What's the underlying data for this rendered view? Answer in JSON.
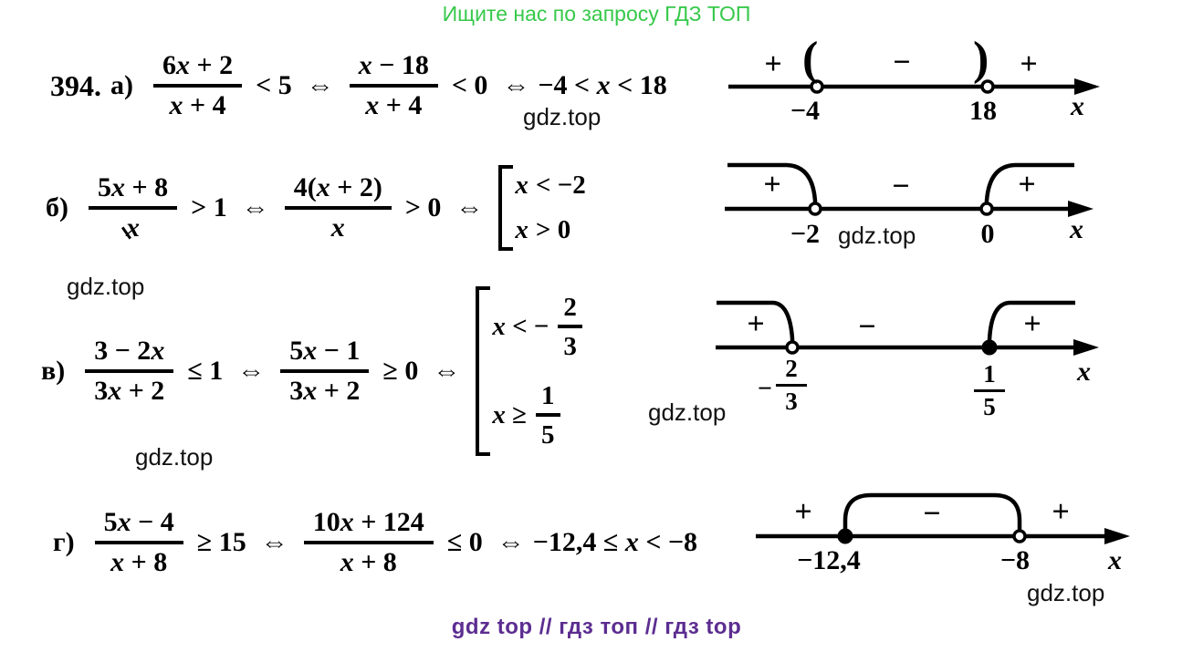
{
  "header": {
    "text": "Ищите нас по запросу ГДЗ ТОП"
  },
  "footer": {
    "text": "gdz top  //  гдз топ  //  гдз top"
  },
  "watermark": "gdz.top",
  "colors": {
    "header_green": "#36c94a",
    "footer_purple": "#5c2d91",
    "ink": "#000000",
    "paper": "#ffffff"
  },
  "problem": {
    "number": "394."
  },
  "parts": {
    "a": {
      "label": "а)",
      "frac1": {
        "num": "6x + 2",
        "den": "x + 4"
      },
      "rel1": "< 5",
      "iff1": "⇔",
      "frac2": {
        "num": "x − 18",
        "den": "x + 4"
      },
      "rel2": "< 0",
      "iff2": "⇔",
      "result": "−4 < x < 18",
      "axis": {
        "signs": [
          "+",
          "−",
          "+"
        ],
        "open_bracket": "(",
        "close_bracket": ")",
        "left_point": "−4",
        "right_point": "18",
        "axis_label": "x"
      }
    },
    "b": {
      "label": "б)",
      "frac1": {
        "num": "5x + 8",
        "den": "x"
      },
      "rel1": "> 1",
      "iff1": "⇔",
      "frac2": {
        "num": "4(x + 2)",
        "den": "x"
      },
      "rel2": "> 0",
      "iff2": "⇔",
      "cases": [
        "x < −2",
        "x > 0"
      ],
      "axis": {
        "signs": [
          "+",
          "−",
          "+"
        ],
        "left_point": "−2",
        "right_point": "0",
        "axis_label": "x"
      }
    },
    "v": {
      "label": "в)",
      "frac1": {
        "num": "3 − 2x",
        "den": "3x + 2"
      },
      "rel1": "≤ 1",
      "iff1": "⇔",
      "frac2": {
        "num": "5x − 1",
        "den": "3x + 2"
      },
      "rel2": "≥ 0",
      "iff2": "⇔",
      "cases": [
        {
          "pre": "x < −",
          "num": "2",
          "den": "3"
        },
        {
          "pre": "x ≥",
          "num": "1",
          "den": "5"
        }
      ],
      "axis": {
        "signs": [
          "+",
          "−",
          "+"
        ],
        "left_label": {
          "sign": "−",
          "num": "2",
          "den": "3"
        },
        "right_label": {
          "num": "1",
          "den": "5"
        },
        "axis_label": "x"
      }
    },
    "g": {
      "label": "г)",
      "frac1": {
        "num": "5x − 4",
        "den": "x + 8"
      },
      "rel1": "≥ 15",
      "iff1": "⇔",
      "frac2": {
        "num": "10x + 124",
        "den": "x + 8"
      },
      "rel2": "≤ 0",
      "iff2": "⇔",
      "result": "−12,4 ≤ x < −8",
      "axis": {
        "signs": [
          "+",
          "−",
          "+"
        ],
        "left_point": "−12,4",
        "right_point": "−8",
        "axis_label": "x"
      }
    }
  }
}
